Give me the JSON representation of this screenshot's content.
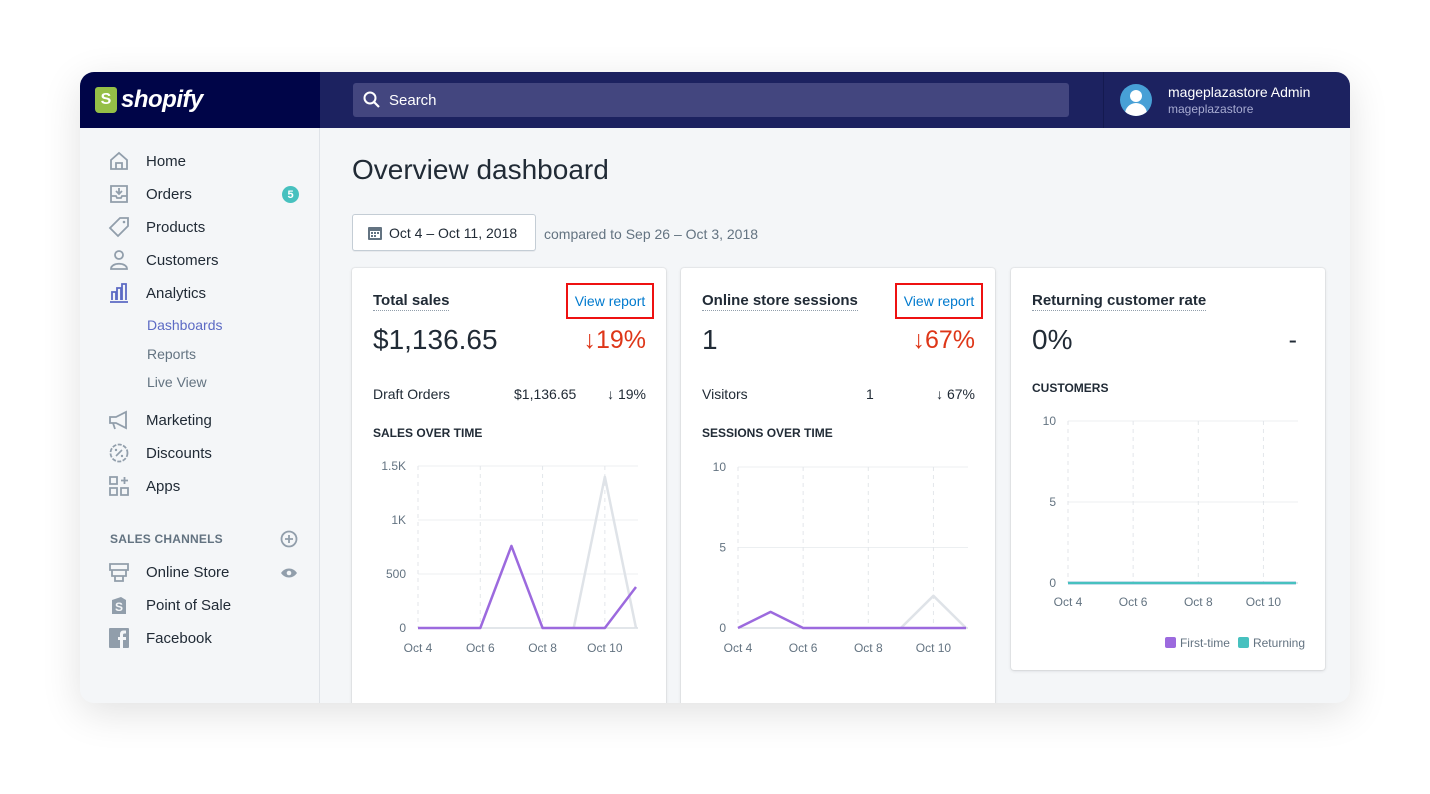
{
  "brand": {
    "name": "shopify",
    "colors": {
      "logo_bg": "#000548",
      "topbar": "#1c2260",
      "accent": "#5c6ac4",
      "negative": "#de3618",
      "series_current": "#9c6ade",
      "series_previous": "#dfe3e8",
      "returning": "#47c1bf"
    }
  },
  "search": {
    "placeholder": "Search"
  },
  "user": {
    "name": "mageplazastore Admin",
    "store": "mageplazastore"
  },
  "sidebar": {
    "items": [
      {
        "label": "Home",
        "icon": "home-icon"
      },
      {
        "label": "Orders",
        "icon": "orders-icon",
        "badge": "5"
      },
      {
        "label": "Products",
        "icon": "tag-icon"
      },
      {
        "label": "Customers",
        "icon": "person-icon"
      },
      {
        "label": "Analytics",
        "icon": "bar-chart-icon"
      }
    ],
    "analytics_sub": [
      {
        "label": "Dashboards",
        "active": true
      },
      {
        "label": "Reports"
      },
      {
        "label": "Live View"
      }
    ],
    "items2": [
      {
        "label": "Marketing",
        "icon": "megaphone-icon"
      },
      {
        "label": "Discounts",
        "icon": "discount-icon"
      },
      {
        "label": "Apps",
        "icon": "apps-icon"
      }
    ],
    "sales_channels_title": "SALES CHANNELS",
    "channels": [
      {
        "label": "Online Store",
        "icon": "store-icon"
      },
      {
        "label": "Point of Sale",
        "icon": "pos-bag-icon"
      },
      {
        "label": "Facebook",
        "icon": "facebook-icon"
      }
    ]
  },
  "page": {
    "title": "Overview dashboard",
    "date_range": "Oct 4 – Oct 11, 2018",
    "compared": "compared to Sep 26 – Oct 3, 2018"
  },
  "cards": [
    {
      "title": "Total sales",
      "view_report": "View report",
      "value": "$1,136.65",
      "delta": "↓19%",
      "row": {
        "label": "Draft Orders",
        "value": "$1,136.65",
        "delta": "↓ 19%"
      },
      "section": "SALES OVER TIME"
    },
    {
      "title": "Online store sessions",
      "view_report": "View report",
      "value": "1",
      "delta": "↓67%",
      "row": {
        "label": "Visitors",
        "value": "1",
        "delta": "↓ 67%"
      },
      "section": "SESSIONS OVER TIME"
    },
    {
      "title": "Returning customer rate",
      "value": "0%",
      "delta": "-",
      "section": "CUSTOMERS",
      "legend": [
        "First-time",
        "Returning"
      ]
    }
  ],
  "chart_data": [
    {
      "type": "line",
      "x": [
        "Oct 4",
        "Oct 5",
        "Oct 6",
        "Oct 7",
        "Oct 8",
        "Oct 9",
        "Oct 10",
        "Oct 11"
      ],
      "x_tick_labels": [
        "Oct 4",
        "Oct 6",
        "Oct 8",
        "Oct 10"
      ],
      "y_tick_labels": [
        "0",
        "500",
        "1K",
        "1.5K"
      ],
      "ylim": [
        0,
        1500
      ],
      "series": [
        {
          "values": [
            0,
            0,
            0,
            760,
            0,
            0,
            0,
            380
          ]
        },
        {
          "values": [
            null,
            null,
            null,
            null,
            null,
            0,
            1400,
            0
          ]
        }
      ]
    },
    {
      "type": "line",
      "x": [
        "Oct 4",
        "Oct 5",
        "Oct 6",
        "Oct 7",
        "Oct 8",
        "Oct 9",
        "Oct 10",
        "Oct 11"
      ],
      "x_tick_labels": [
        "Oct 4",
        "Oct 6",
        "Oct 8",
        "Oct 10"
      ],
      "y_tick_labels": [
        "0",
        "5",
        "10"
      ],
      "ylim": [
        0,
        10
      ],
      "series": [
        {
          "values": [
            0,
            1,
            0,
            0,
            0,
            0,
            0,
            0
          ]
        },
        {
          "values": [
            null,
            null,
            null,
            null,
            null,
            0,
            2,
            0
          ]
        }
      ]
    },
    {
      "type": "line",
      "x": [
        "Oct 4",
        "Oct 5",
        "Oct 6",
        "Oct 7",
        "Oct 8",
        "Oct 9",
        "Oct 10",
        "Oct 11"
      ],
      "x_tick_labels": [
        "Oct 4",
        "Oct 6",
        "Oct 8",
        "Oct 10"
      ],
      "y_tick_labels": [
        "0",
        "5",
        "10"
      ],
      "ylim": [
        0,
        10
      ],
      "series": [
        {
          "name": "First-time",
          "values": [
            0,
            0,
            0,
            0,
            0,
            0,
            0,
            0
          ]
        },
        {
          "name": "Returning",
          "values": [
            0,
            0,
            0,
            0,
            0,
            0,
            0,
            0
          ]
        }
      ]
    }
  ]
}
